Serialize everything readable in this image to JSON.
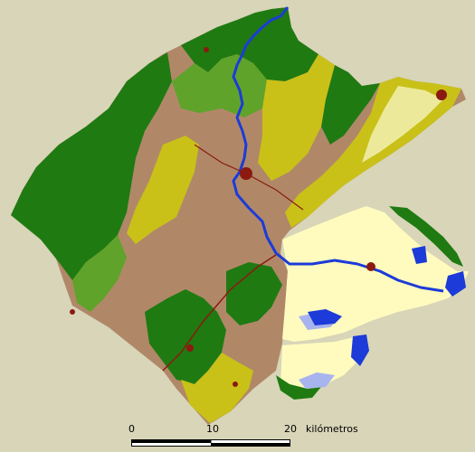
{
  "colors": {
    "background": "#d8d5b8",
    "forest": "#1f7a12",
    "shrub": "#5fa32a",
    "agriculture_dry": "#c9c118",
    "agriculture_mixed": "#ecea9a",
    "bare_soil": "#b08868",
    "delta_rice": "#fffbbe",
    "urban": "#8b1a10",
    "water": "#1c3bd8",
    "wetland_light": "#a8b4ee"
  },
  "scale": {
    "ticks": [
      "0",
      "10",
      "20"
    ],
    "unit": "kilómetros"
  }
}
